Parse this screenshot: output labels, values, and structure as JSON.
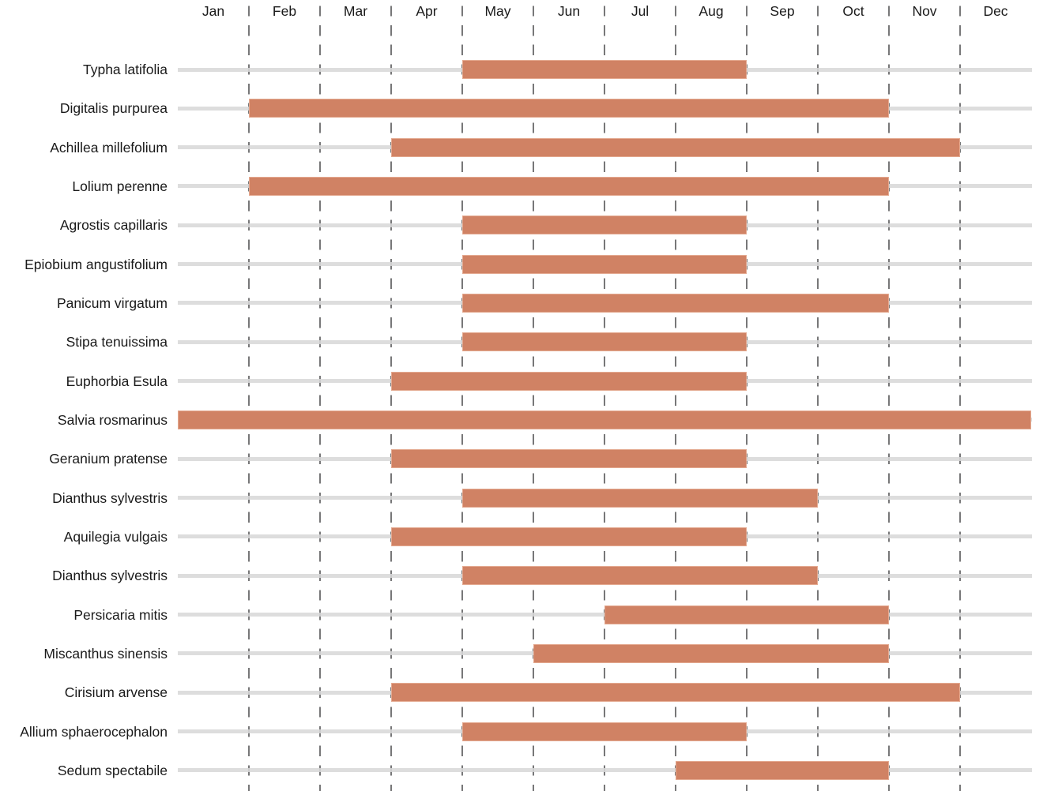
{
  "chart_data": {
    "type": "bar",
    "subtype": "gantt-flowering-calendar",
    "title": "",
    "xlabel": "",
    "ylabel": "",
    "x_axis_position": "top",
    "grid": "dashed-vertical-month-boundaries",
    "legend": "none",
    "months": [
      "Jan",
      "Feb",
      "Mar",
      "Apr",
      "May",
      "Jun",
      "Jul",
      "Aug",
      "Sep",
      "Oct",
      "Nov",
      "Dec"
    ],
    "colors": {
      "bar_fill": "#d08264",
      "bar_edge": "#e4aa91",
      "track_gray": "#d8d8d8",
      "gridline_gray": "#59595b",
      "text": "#1a1a1a",
      "background": "#ffffff"
    },
    "series": [
      {
        "name": "Typha latifolia",
        "start_month": "May",
        "end_month": "Aug",
        "start_index": 4,
        "end_index": 8
      },
      {
        "name": "Digitalis purpurea",
        "start_month": "Feb",
        "end_month": "Oct",
        "start_index": 1,
        "end_index": 10
      },
      {
        "name": "Achillea millefolium",
        "start_month": "Apr",
        "end_month": "Nov",
        "start_index": 3,
        "end_index": 11
      },
      {
        "name": "Lolium perenne",
        "start_month": "Feb",
        "end_month": "Oct",
        "start_index": 1,
        "end_index": 10
      },
      {
        "name": "Agrostis capillaris",
        "start_month": "May",
        "end_month": "Aug",
        "start_index": 4,
        "end_index": 8
      },
      {
        "name": "Epiobium angustifolium",
        "start_month": "May",
        "end_month": "Aug",
        "start_index": 4,
        "end_index": 8
      },
      {
        "name": "Panicum virgatum",
        "start_month": "May",
        "end_month": "Oct",
        "start_index": 4,
        "end_index": 10
      },
      {
        "name": "Stipa tenuissima",
        "start_month": "May",
        "end_month": "Aug",
        "start_index": 4,
        "end_index": 8
      },
      {
        "name": "Euphorbia Esula",
        "start_month": "Apr",
        "end_month": "Aug",
        "start_index": 3,
        "end_index": 8
      },
      {
        "name": "Salvia rosmarinus",
        "start_month": "Jan",
        "end_month": "Dec",
        "start_index": 0,
        "end_index": 12
      },
      {
        "name": "Geranium pratense",
        "start_month": "Apr",
        "end_month": "Aug",
        "start_index": 3,
        "end_index": 8
      },
      {
        "name": "Dianthus sylvestris",
        "start_month": "May",
        "end_month": "Sep",
        "start_index": 4,
        "end_index": 9
      },
      {
        "name": "Aquilegia vulgais",
        "start_month": "Apr",
        "end_month": "Aug",
        "start_index": 3,
        "end_index": 8
      },
      {
        "name": "Dianthus sylvestris",
        "start_month": "May",
        "end_month": "Sep",
        "start_index": 4,
        "end_index": 9
      },
      {
        "name": "Persicaria mitis",
        "start_month": "Jul",
        "end_month": "Oct",
        "start_index": 6,
        "end_index": 10
      },
      {
        "name": "Miscanthus sinensis",
        "start_month": "Jun",
        "end_month": "Oct",
        "start_index": 5,
        "end_index": 10
      },
      {
        "name": "Cirisium arvense",
        "start_month": "Apr",
        "end_month": "Nov",
        "start_index": 3,
        "end_index": 11
      },
      {
        "name": "Allium sphaerocephalon",
        "start_month": "May",
        "end_month": "Aug",
        "start_index": 4,
        "end_index": 8
      },
      {
        "name": "Sedum spectabile",
        "start_month": "Aug",
        "end_month": "Oct",
        "start_index": 7,
        "end_index": 10
      }
    ]
  }
}
